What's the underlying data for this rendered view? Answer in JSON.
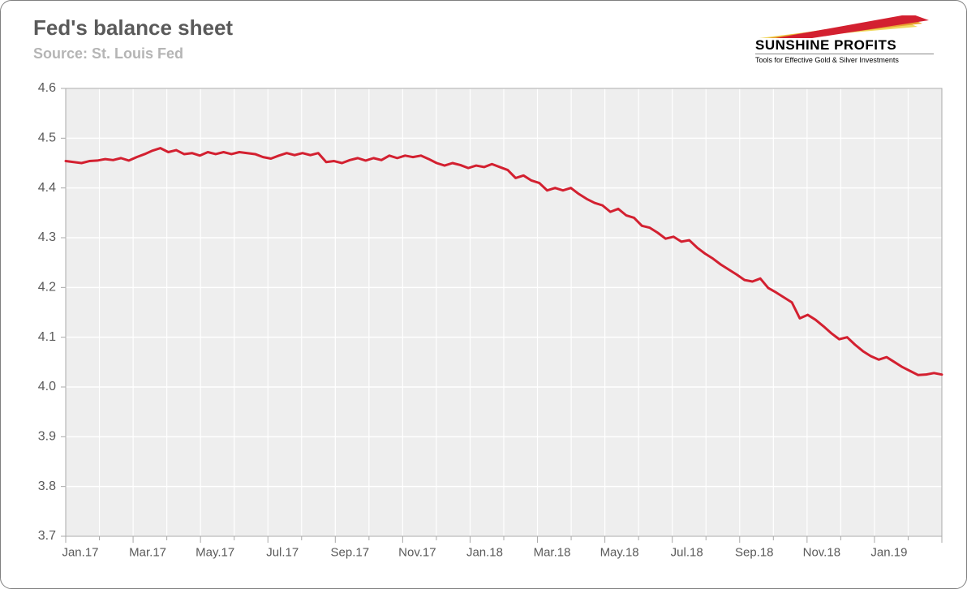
{
  "title": "Fed's balance sheet",
  "source": "Source: St. Louis Fed",
  "logo": {
    "brand": "SUNSHINE PROFITS",
    "tagline": "Tools for Effective Gold & Silver Investments",
    "swoosh_colors": [
      "#d32030",
      "#e8a030",
      "#f0d860"
    ]
  },
  "chart": {
    "type": "line",
    "line_color": "#d32030",
    "line_width": 3,
    "background_color": "#eeeeee",
    "grid_color": "#ffffff",
    "border_color": "#a8a8a8",
    "tick_color": "#a8a8a8",
    "label_color": "#5a5a5a",
    "ylim": [
      3.7,
      4.6
    ],
    "ytick_step": 0.1,
    "yticks": [
      "3.7",
      "3.8",
      "3.9",
      "4.0",
      "4.1",
      "4.2",
      "4.3",
      "4.4",
      "4.5",
      "4.6"
    ],
    "xticks_major": [
      "Jan.17",
      "Mar.17",
      "May.17",
      "Jul.17",
      "Sep.17",
      "Nov.17",
      "Jan.18",
      "Mar.18",
      "May.18",
      "Jul.18",
      "Sep.18",
      "Nov.18",
      "Jan.19"
    ],
    "x_count": 112,
    "values": [
      4.454,
      4.452,
      4.45,
      4.454,
      4.455,
      4.458,
      4.456,
      4.46,
      4.455,
      4.462,
      4.468,
      4.475,
      4.48,
      4.472,
      4.476,
      4.468,
      4.47,
      4.465,
      4.472,
      4.468,
      4.472,
      4.468,
      4.472,
      4.47,
      4.468,
      4.462,
      4.459,
      4.465,
      4.47,
      4.466,
      4.47,
      4.466,
      4.47,
      4.452,
      4.454,
      4.45,
      4.456,
      4.46,
      4.455,
      4.46,
      4.456,
      4.465,
      4.46,
      4.465,
      4.462,
      4.465,
      4.458,
      4.45,
      4.445,
      4.45,
      4.446,
      4.44,
      4.445,
      4.442,
      4.448,
      4.442,
      4.436,
      4.42,
      4.425,
      4.415,
      4.41,
      4.395,
      4.4,
      4.395,
      4.4,
      4.388,
      4.378,
      4.37,
      4.365,
      4.352,
      4.358,
      4.345,
      4.34,
      4.324,
      4.32,
      4.31,
      4.298,
      4.302,
      4.292,
      4.295,
      4.28,
      4.268,
      4.258,
      4.246,
      4.236,
      4.226,
      4.215,
      4.212,
      4.218,
      4.199,
      4.19,
      4.18,
      4.17,
      4.138,
      4.145,
      4.135,
      4.122,
      4.108,
      4.096,
      4.1,
      4.085,
      4.072,
      4.062,
      4.055,
      4.06,
      4.05,
      4.04,
      4.032,
      4.024,
      4.025,
      4.028,
      4.025
    ]
  }
}
